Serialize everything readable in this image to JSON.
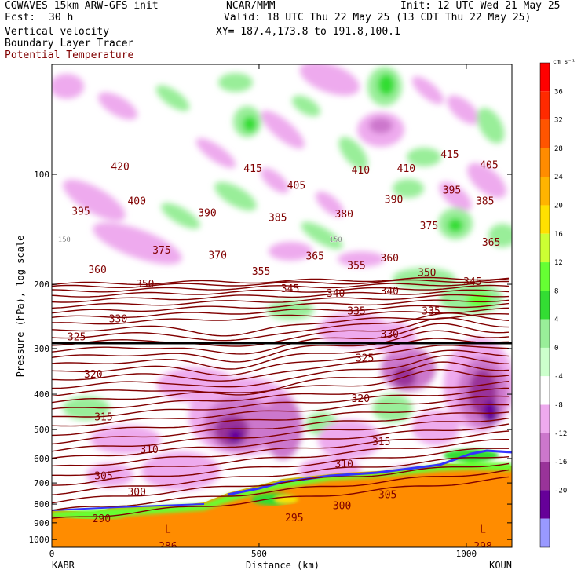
{
  "header": {
    "model": "CGWAVES 15km ARW-GFS init",
    "fcst_label": "Fcst:",
    "fcst_value": "30 h",
    "field1": "Vertical velocity",
    "field2": "Boundary Layer Tracer",
    "field3": "Potential Temperature",
    "center": "NCAR/MMM",
    "init": "Init: 12 UTC Wed 21 May 25",
    "valid": "Valid: 18 UTC Thu 22 May 25 (13 CDT Thu 22 May 25)",
    "xy": "XY= 187.4,173.8 to 191.8,100.1"
  },
  "colors": {
    "theta": "#800000",
    "tracer": "#000000",
    "ground": "#ff8c00",
    "tropopause_line": "#000000"
  },
  "chart_data": {
    "type": "cross-section",
    "xlabel": "Distance (km)",
    "ylabel": "Pressure (hPa), log scale",
    "xlim": [
      0,
      1110
    ],
    "xticks": [
      0,
      500,
      1000
    ],
    "ylim": [
      1050,
      50
    ],
    "yticks": [
      100,
      200,
      300,
      400,
      500,
      600,
      700,
      800,
      900,
      1000
    ],
    "endpoint_left": "KABR",
    "endpoint_right": "KOUN",
    "colorbar": {
      "unit": "cm s⁻¹",
      "ticks": [
        36,
        32,
        28,
        24,
        20,
        16,
        12,
        8,
        4,
        0,
        -4,
        -8,
        -12,
        -16,
        -20
      ],
      "bins": [
        {
          "min": 40,
          "color": "#ff0000"
        },
        {
          "min": 36,
          "color": "#ff2a00"
        },
        {
          "min": 32,
          "color": "#ff5500"
        },
        {
          "min": 28,
          "color": "#ff8c00"
        },
        {
          "min": 24,
          "color": "#ffb400"
        },
        {
          "min": 20,
          "color": "#ffe000"
        },
        {
          "min": 16,
          "color": "#ccff33"
        },
        {
          "min": 12,
          "color": "#66ff33"
        },
        {
          "min": 8,
          "color": "#33dd33"
        },
        {
          "min": 4,
          "color": "#99ee99"
        },
        {
          "min": 0,
          "color": "#ccffcc"
        },
        {
          "min": -4,
          "color": "#ffffff"
        },
        {
          "min": -8,
          "color": "#eeaaee"
        },
        {
          "min": -12,
          "color": "#cc77cc"
        },
        {
          "min": -16,
          "color": "#993399"
        },
        {
          "min": -20,
          "color": "#660099"
        },
        {
          "min": -24,
          "color": "#9999ff"
        }
      ]
    },
    "theta_labels": [
      {
        "v": "420",
        "x": 165,
        "p": 95
      },
      {
        "v": "415",
        "x": 485,
        "p": 96
      },
      {
        "v": "410",
        "x": 745,
        "p": 97
      },
      {
        "v": "410",
        "x": 855,
        "p": 96
      },
      {
        "v": "415",
        "x": 960,
        "p": 88
      },
      {
        "v": "405",
        "x": 1055,
        "p": 94
      },
      {
        "v": "405",
        "x": 590,
        "p": 107
      },
      {
        "v": "400",
        "x": 205,
        "p": 118
      },
      {
        "v": "395",
        "x": 70,
        "p": 126
      },
      {
        "v": "395",
        "x": 965,
        "p": 110
      },
      {
        "v": "390",
        "x": 375,
        "p": 127
      },
      {
        "v": "390",
        "x": 825,
        "p": 117
      },
      {
        "v": "385",
        "x": 545,
        "p": 131
      },
      {
        "v": "385",
        "x": 1045,
        "p": 118
      },
      {
        "v": "380",
        "x": 705,
        "p": 128
      },
      {
        "v": "375",
        "x": 265,
        "p": 161
      },
      {
        "v": "375",
        "x": 910,
        "p": 138
      },
      {
        "v": "370",
        "x": 400,
        "p": 166
      },
      {
        "v": "365",
        "x": 1060,
        "p": 153
      },
      {
        "v": "365",
        "x": 635,
        "p": 167
      },
      {
        "v": "360",
        "x": 110,
        "p": 182
      },
      {
        "v": "360",
        "x": 815,
        "p": 169
      },
      {
        "v": "355",
        "x": 505,
        "p": 184
      },
      {
        "v": "355",
        "x": 735,
        "p": 177
      },
      {
        "v": "350",
        "x": 225,
        "p": 199
      },
      {
        "v": "350",
        "x": 905,
        "p": 185
      },
      {
        "v": "345",
        "x": 575,
        "p": 205
      },
      {
        "v": "345",
        "x": 1015,
        "p": 196
      },
      {
        "v": "340",
        "x": 685,
        "p": 211
      },
      {
        "v": "340",
        "x": 815,
        "p": 208
      },
      {
        "v": "335",
        "x": 735,
        "p": 236
      },
      {
        "v": "335",
        "x": 915,
        "p": 236
      },
      {
        "v": "330",
        "x": 160,
        "p": 248
      },
      {
        "v": "330",
        "x": 815,
        "p": 273
      },
      {
        "v": "325",
        "x": 60,
        "p": 278
      },
      {
        "v": "325",
        "x": 755,
        "p": 318
      },
      {
        "v": "320",
        "x": 100,
        "p": 352
      },
      {
        "v": "320",
        "x": 745,
        "p": 410
      },
      {
        "v": "315",
        "x": 125,
        "p": 460
      },
      {
        "v": "315",
        "x": 795,
        "p": 538
      },
      {
        "v": "310",
        "x": 235,
        "p": 565
      },
      {
        "v": "310",
        "x": 705,
        "p": 620
      },
      {
        "v": "305",
        "x": 125,
        "p": 668
      },
      {
        "v": "305",
        "x": 810,
        "p": 752
      },
      {
        "v": "300",
        "x": 205,
        "p": 738
      },
      {
        "v": "300",
        "x": 700,
        "p": 805
      },
      {
        "v": "295",
        "x": 585,
        "p": 870
      },
      {
        "v": "290",
        "x": 120,
        "p": 875
      },
      {
        "v": "286",
        "x": 280,
        "p": 1040
      },
      {
        "v": "298",
        "x": 1040,
        "p": 1040
      }
    ],
    "tropopause_labels": [
      {
        "v": "150",
        "x": 30,
        "p": 150
      },
      {
        "v": "150",
        "x": 685,
        "p": 150
      }
    ],
    "markers": [
      {
        "v": "L",
        "x": 280,
        "p": 940
      },
      {
        "v": "L",
        "x": 1040,
        "p": 940
      }
    ]
  }
}
